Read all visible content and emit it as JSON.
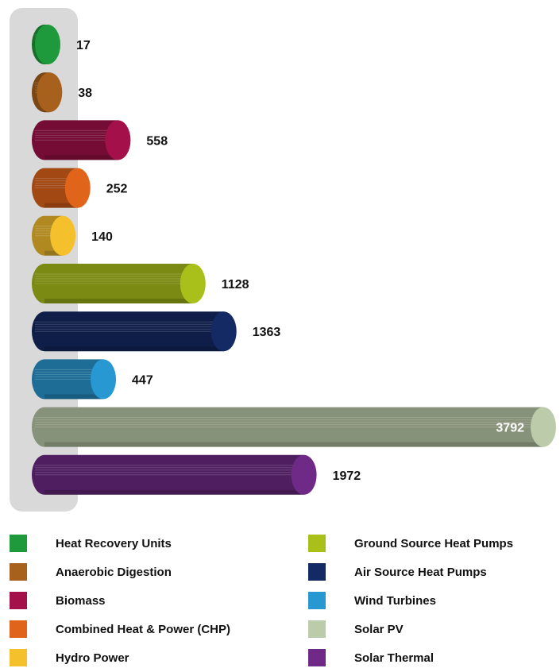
{
  "chart_data": {
    "type": "bar",
    "orientation": "horizontal",
    "style": "3d-cylinder",
    "categories": [
      "Heat Recovery Units",
      "Anaerobic Digestion",
      "Biomass",
      "Combined Heat & Power (CHP)",
      "Hydro Power",
      "Ground Source Heat Pumps",
      "Air Source Heat Pumps",
      "Wind Turbines",
      "Solar PV",
      "Solar Thermal"
    ],
    "values": [
      17,
      38,
      558,
      252,
      140,
      1128,
      1363,
      447,
      3792,
      1972
    ],
    "value_labels": [
      "17",
      "38",
      "558",
      "252",
      "140",
      "1128",
      "1363",
      "447",
      "3792",
      "1972"
    ],
    "colors": [
      "#1e9a3c",
      "#a8611c",
      "#a3104a",
      "#e0641a",
      "#f4c02c",
      "#a9c01a",
      "#142a64",
      "#2898d2",
      "#bccbaa",
      "#6e2a86"
    ],
    "xlim": [
      0,
      3792
    ],
    "axis_background": "#d9d9d9",
    "grid": false,
    "legend_position": "bottom",
    "title": "",
    "xlabel": "",
    "ylabel": ""
  },
  "legend": {
    "items": [
      {
        "label": "Heat Recovery Units",
        "color": "#1e9a3c"
      },
      {
        "label": "Anaerobic Digestion",
        "color": "#a8611c"
      },
      {
        "label": "Biomass",
        "color": "#a3104a"
      },
      {
        "label": "Combined Heat & Power (CHP)",
        "color": "#e0641a"
      },
      {
        "label": "Hydro Power",
        "color": "#f4c02c"
      },
      {
        "label": "Ground Source Heat Pumps",
        "color": "#a9c01a"
      },
      {
        "label": "Air Source Heat Pumps",
        "color": "#142a64"
      },
      {
        "label": "Wind Turbines",
        "color": "#2898d2"
      },
      {
        "label": "Solar PV",
        "color": "#bccbaa"
      },
      {
        "label": "Solar Thermal",
        "color": "#6e2a86"
      }
    ]
  }
}
